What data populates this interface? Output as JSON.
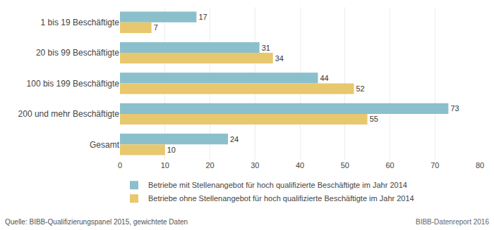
{
  "chart_data": {
    "type": "bar",
    "orientation": "horizontal",
    "categories": [
      "1 bis 19 Beschäftigte",
      "20 bis 99 Beschäftigte",
      "100 bis 199 Beschäftigte",
      "200 und mehr Beschäftigte",
      "Gesamt"
    ],
    "series": [
      {
        "name": "Betriebe mit Stellenangebot für hoch qualifizierte Beschäftigte im Jahr 2014",
        "color": "#8bbfcc",
        "values": [
          17,
          31,
          44,
          73,
          24
        ]
      },
      {
        "name": "Betriebe ohne Stellenangebot für hoch qualifizierte Beschäftigte im Jahr 2014",
        "color": "#e8c86e",
        "values": [
          7,
          34,
          52,
          55,
          10
        ]
      }
    ],
    "xlim": [
      0,
      80
    ],
    "xticks": [
      0,
      10,
      20,
      30,
      40,
      50,
      60,
      70,
      80
    ],
    "grid": true,
    "data_labels": true,
    "legend": "bottom",
    "annotations": [
      "Quelle: BIBB-Qualifizierungspanel 2015, gewichtete Daten",
      "BIBB-Datenreport 2016"
    ]
  }
}
